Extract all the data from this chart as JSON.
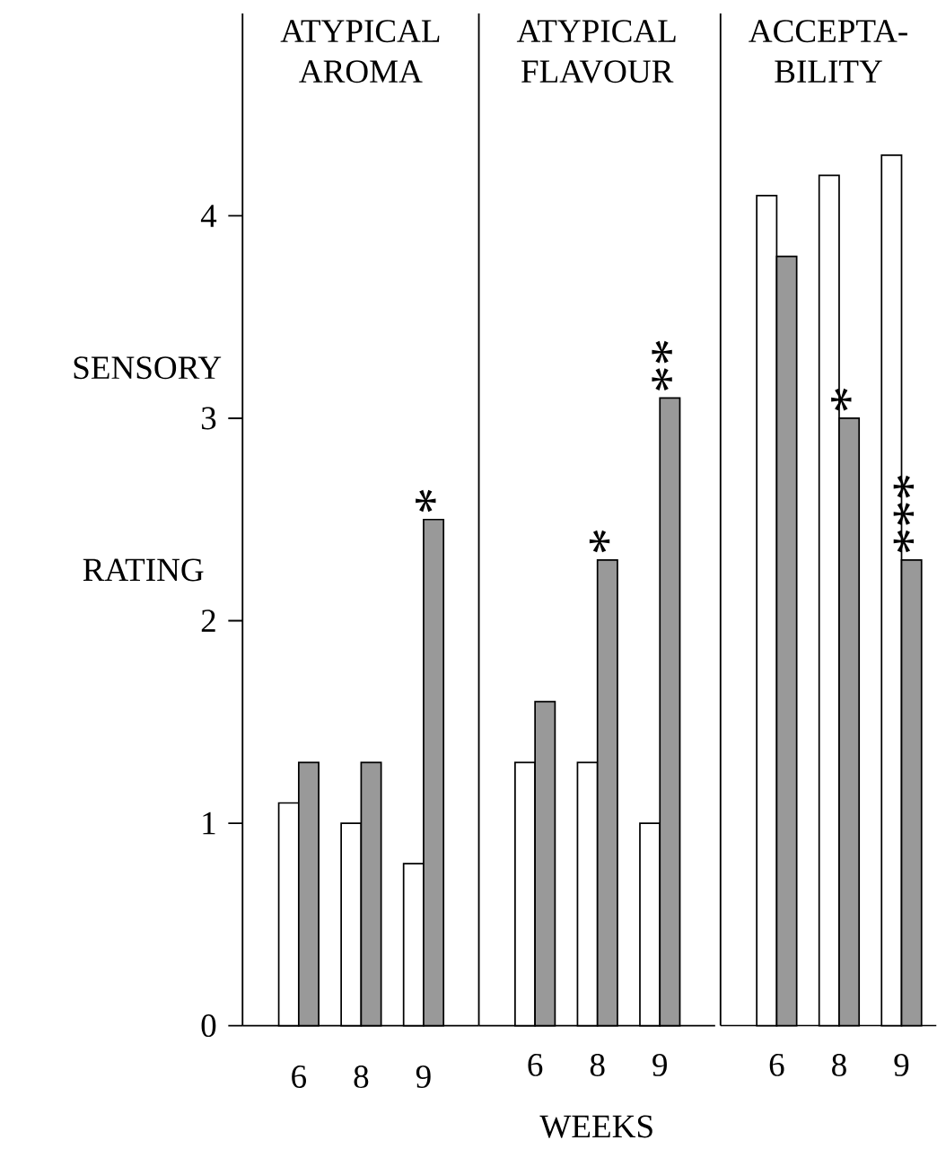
{
  "chart_data": [
    {
      "type": "bar",
      "title": "ATYPICAL AROMA",
      "categories": [
        "6",
        "8",
        "9"
      ],
      "ylabel": "SENSORY RATING",
      "ylim": [
        0,
        5
      ],
      "yticks": [
        0,
        1,
        2,
        3,
        4
      ],
      "series": [
        {
          "color": "#ffffff",
          "values": [
            1.1,
            1.0,
            0.8
          ]
        },
        {
          "color": "#999999",
          "values": [
            1.3,
            1.3,
            2.5
          ]
        }
      ],
      "annotations": [
        {
          "text": "*",
          "x": "9",
          "y": 2.5
        }
      ]
    },
    {
      "type": "bar",
      "title": "ATYPICAL FLAVOUR",
      "categories": [
        "6",
        "8",
        "9"
      ],
      "xlabel": "WEEKS",
      "ylim": [
        0,
        5
      ],
      "tick_labels": "x",
      "series": [
        {
          "color": "#ffffff",
          "values": [
            1.3,
            1.3,
            1.0
          ]
        },
        {
          "color": "#999999",
          "values": [
            1.6,
            2.3,
            3.1
          ]
        }
      ],
      "annotations": [
        {
          "text": "*",
          "x": "8",
          "y": 2.3
        },
        {
          "text": "**",
          "x": "9",
          "y": 3.1
        }
      ]
    },
    {
      "type": "bar",
      "title": "ACCEPTA-BILITY",
      "categories": [
        "6",
        "8",
        "9"
      ],
      "ylim": [
        0,
        5
      ],
      "tick_labels": "x",
      "series": [
        {
          "color": "#ffffff",
          "values": [
            4.1,
            4.2,
            4.3
          ]
        },
        {
          "color": "#999999",
          "values": [
            3.8,
            3.0,
            2.3
          ]
        }
      ],
      "annotations": [
        {
          "text": "*",
          "x": "8",
          "y": 3.0
        },
        {
          "text": "***",
          "x": "9",
          "y": 2.3
        }
      ]
    }
  ]
}
